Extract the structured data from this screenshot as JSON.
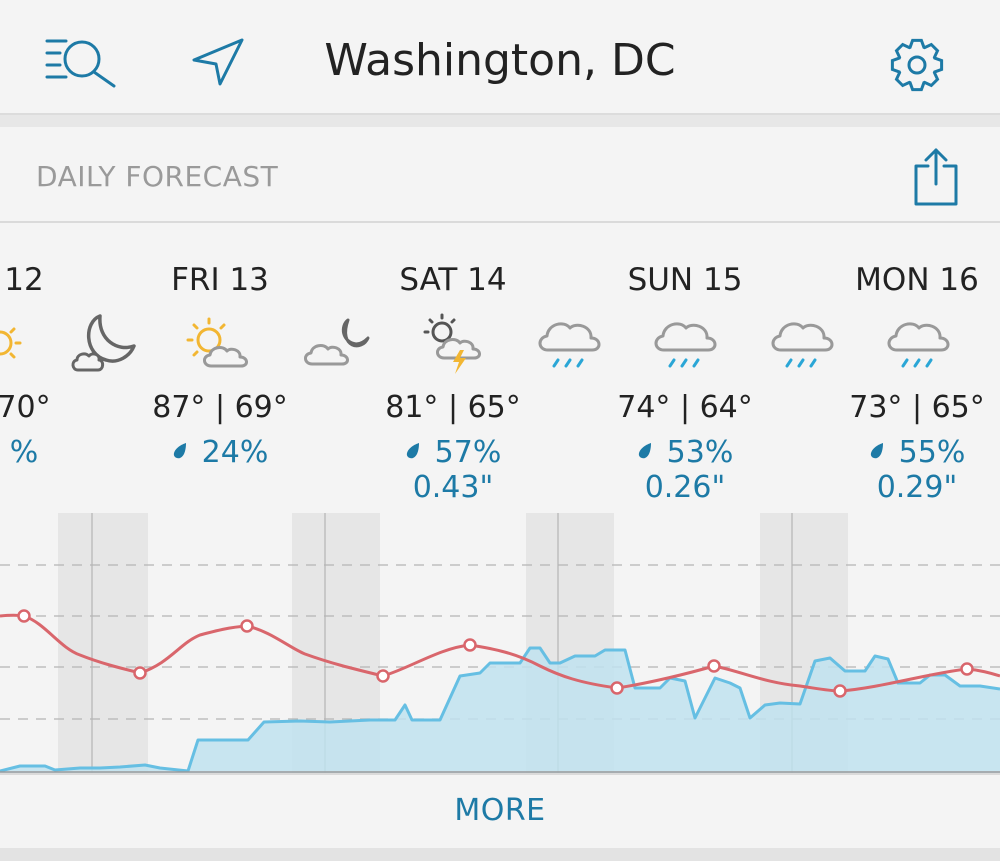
{
  "header": {
    "title": "Washington, DC",
    "icons": {
      "search": "search-list-icon",
      "location": "location-arrow-icon",
      "settings": "gear-icon"
    },
    "accent_color": "#1d7aa6"
  },
  "section": {
    "title": "DAILY FORECAST",
    "share_icon": "share-icon"
  },
  "days": [
    {
      "label": "12",
      "temps": "70°",
      "precip": "%",
      "amount": ""
    },
    {
      "label": "FRI 13",
      "temps": "87° | 69°",
      "precip": "24%",
      "amount": ""
    },
    {
      "label": "SAT 14",
      "temps": "81° | 65°",
      "precip": "57%",
      "amount": "0.43\""
    },
    {
      "label": "SUN 15",
      "temps": "74° | 64°",
      "precip": "53%",
      "amount": "0.26\""
    },
    {
      "label": "MON 16",
      "temps": "73° | 65°",
      "precip": "55%",
      "amount": "0.29\""
    }
  ],
  "more_label": "MORE",
  "colors": {
    "temp_line": "#d9666c",
    "precip_line": "#66bfe3",
    "precip_fill": "#bfe2ef",
    "night_band": "#e6e6e6"
  }
}
